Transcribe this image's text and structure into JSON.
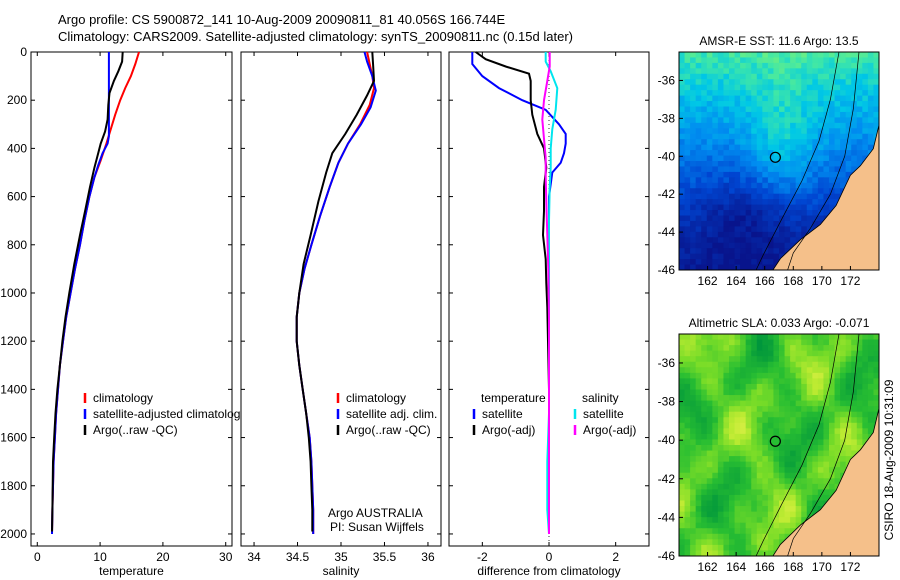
{
  "header": {
    "line1": "Argo profile: CS 5900872_141 10-Aug-2009 20090811_81 40.056S 166.744E",
    "line2": "Climatology: CARS2009. Satellite-adjusted climatology: synTS_20090811.nc (0.15d later)"
  },
  "side_stamp": "CSIRO 18-Aug-2009 10:31:09",
  "colors": {
    "climatology": "#ff0000",
    "satellite": "#0000ff",
    "argo": "#000000",
    "satellite_salinity": "#00e5ee",
    "argo_salinity": "#ff00ff",
    "land": "#f5c08a"
  },
  "chart_data": [
    {
      "id": "temperature",
      "type": "line",
      "xlabel": "temperature",
      "xlim": [
        -1,
        31
      ],
      "ylim": [
        2050,
        0
      ],
      "xticks": [
        "0",
        "10",
        "20",
        "30"
      ],
      "yticks": [
        "0",
        "200",
        "400",
        "600",
        "800",
        "1000",
        "1200",
        "1400",
        "1600",
        "1800",
        "2000"
      ],
      "legend": [
        "climatology",
        "satellite-adjusted climatology",
        "Argo(..raw -QC)"
      ],
      "series": [
        {
          "name": "climatology",
          "color": "#ff0000",
          "points": [
            [
              16.2,
              0
            ],
            [
              15.6,
              50
            ],
            [
              14.9,
              100
            ],
            [
              14.0,
              150
            ],
            [
              13.2,
              200
            ],
            [
              12.4,
              260
            ],
            [
              11.7,
              320
            ],
            [
              11.0,
              380
            ],
            [
              10.1,
              450
            ],
            [
              9.1,
              520
            ],
            [
              8.3,
              600
            ],
            [
              7.5,
              700
            ],
            [
              6.8,
              800
            ],
            [
              6.0,
              900
            ],
            [
              5.3,
              1000
            ],
            [
              4.6,
              1100
            ],
            [
              4.1,
              1200
            ],
            [
              3.6,
              1300
            ],
            [
              3.3,
              1400
            ],
            [
              3.0,
              1500
            ],
            [
              2.8,
              1600
            ],
            [
              2.6,
              1700
            ],
            [
              2.5,
              1800
            ],
            [
              2.4,
              1900
            ],
            [
              2.35,
              2000
            ]
          ]
        },
        {
          "name": "satellite-adjusted climatology",
          "color": "#0000ff",
          "points": [
            [
              11.4,
              0
            ],
            [
              11.4,
              100
            ],
            [
              11.4,
              200
            ],
            [
              11.4,
              300
            ],
            [
              11.4,
              350
            ],
            [
              11.2,
              380
            ],
            [
              10.4,
              420
            ],
            [
              9.7,
              470
            ],
            [
              9.1,
              520
            ],
            [
              8.3,
              600
            ],
            [
              7.5,
              700
            ],
            [
              6.8,
              800
            ],
            [
              6.0,
              900
            ],
            [
              5.3,
              1000
            ],
            [
              4.6,
              1100
            ],
            [
              4.1,
              1200
            ],
            [
              3.6,
              1300
            ],
            [
              3.3,
              1400
            ],
            [
              3.0,
              1500
            ],
            [
              2.8,
              1600
            ],
            [
              2.6,
              1700
            ],
            [
              2.5,
              1800
            ],
            [
              2.4,
              1900
            ],
            [
              2.35,
              2000
            ]
          ]
        },
        {
          "name": "Argo(..raw -QC)",
          "color": "#000000",
          "points": [
            [
              13.6,
              0
            ],
            [
              13.5,
              40
            ],
            [
              12.9,
              80
            ],
            [
              12.2,
              120
            ],
            [
              11.5,
              170
            ],
            [
              11.3,
              220
            ],
            [
              11.2,
              280
            ],
            [
              10.8,
              330
            ],
            [
              10.1,
              380
            ],
            [
              9.7,
              420
            ],
            [
              9.1,
              480
            ],
            [
              8.4,
              560
            ],
            [
              7.7,
              650
            ],
            [
              6.8,
              760
            ],
            [
              5.9,
              880
            ],
            [
              5.1,
              1000
            ],
            [
              4.5,
              1100
            ],
            [
              4.0,
              1200
            ],
            [
              3.6,
              1300
            ],
            [
              3.2,
              1400
            ],
            [
              2.9,
              1500
            ],
            [
              2.7,
              1600
            ],
            [
              2.5,
              1700
            ],
            [
              2.45,
              1800
            ],
            [
              2.4,
              1900
            ],
            [
              2.35,
              1990
            ]
          ]
        }
      ]
    },
    {
      "id": "salinity",
      "type": "line",
      "xlabel": "salinity",
      "xlim": [
        33.85,
        36.15
      ],
      "ylim": [
        2050,
        0
      ],
      "xticks": [
        "34",
        "34.5",
        "35",
        "35.5",
        "36"
      ],
      "legend": [
        "climatology",
        "satellite adj. clim.",
        "Argo(..raw -QC)"
      ],
      "annotation": [
        "Argo AUSTRALIA",
        "PI: Susan Wijffels"
      ],
      "series": [
        {
          "name": "climatology",
          "color": "#ff0000",
          "points": [
            [
              35.3,
              0
            ],
            [
              35.36,
              100
            ],
            [
              35.38,
              150
            ],
            [
              35.33,
              220
            ],
            [
              35.22,
              300
            ],
            [
              35.08,
              380
            ],
            [
              34.97,
              460
            ],
            [
              34.87,
              560
            ],
            [
              34.76,
              680
            ],
            [
              34.66,
              800
            ],
            [
              34.58,
              900
            ],
            [
              34.52,
              1000
            ],
            [
              34.49,
              1100
            ],
            [
              34.49,
              1200
            ],
            [
              34.52,
              1300
            ],
            [
              34.56,
              1400
            ],
            [
              34.6,
              1500
            ],
            [
              34.64,
              1600
            ],
            [
              34.66,
              1700
            ],
            [
              34.67,
              1800
            ],
            [
              34.68,
              1900
            ],
            [
              34.68,
              2000
            ]
          ]
        },
        {
          "name": "satellite adj. clim.",
          "color": "#0000ff",
          "points": [
            [
              35.27,
              0
            ],
            [
              35.3,
              40
            ],
            [
              35.36,
              100
            ],
            [
              35.4,
              160
            ],
            [
              35.34,
              230
            ],
            [
              35.23,
              300
            ],
            [
              35.08,
              380
            ],
            [
              34.97,
              460
            ],
            [
              34.87,
              560
            ],
            [
              34.76,
              680
            ],
            [
              34.66,
              800
            ],
            [
              34.58,
              900
            ],
            [
              34.52,
              1000
            ],
            [
              34.49,
              1100
            ],
            [
              34.49,
              1200
            ],
            [
              34.52,
              1300
            ],
            [
              34.56,
              1400
            ],
            [
              34.6,
              1500
            ],
            [
              34.64,
              1600
            ],
            [
              34.66,
              1700
            ],
            [
              34.67,
              1800
            ],
            [
              34.68,
              1900
            ],
            [
              34.68,
              2000
            ]
          ]
        },
        {
          "name": "Argo(..raw -QC)",
          "color": "#000000",
          "points": [
            [
              35.36,
              0
            ],
            [
              35.37,
              60
            ],
            [
              35.38,
              120
            ],
            [
              35.3,
              180
            ],
            [
              35.18,
              260
            ],
            [
              35.05,
              340
            ],
            [
              34.9,
              420
            ],
            [
              34.83,
              500
            ],
            [
              34.74,
              620
            ],
            [
              34.65,
              760
            ],
            [
              34.57,
              880
            ],
            [
              34.52,
              1000
            ],
            [
              34.49,
              1100
            ],
            [
              34.49,
              1200
            ],
            [
              34.52,
              1300
            ],
            [
              34.56,
              1400
            ],
            [
              34.6,
              1500
            ],
            [
              34.63,
              1600
            ],
            [
              34.65,
              1700
            ],
            [
              34.66,
              1800
            ],
            [
              34.67,
              1900
            ],
            [
              34.67,
              1990
            ]
          ]
        }
      ]
    },
    {
      "id": "difference",
      "type": "line",
      "xlabel": "difference from climatology",
      "xlim": [
        -3,
        3
      ],
      "ylim": [
        2050,
        0
      ],
      "xticks": [
        "-2",
        "0",
        "2"
      ],
      "legend_temperature": {
        "title": "temperature",
        "entries": [
          "satellite",
          "Argo(-adj)"
        ]
      },
      "legend_salinity": {
        "title": "salinity",
        "entries": [
          "satellite",
          "Argo(-adj)"
        ]
      },
      "series": [
        {
          "name": "temperature satellite",
          "color": "#0000ff",
          "points": [
            [
              -2.3,
              0
            ],
            [
              -2.3,
              50
            ],
            [
              -2.0,
              100
            ],
            [
              -1.5,
              150
            ],
            [
              -0.8,
              200
            ],
            [
              -0.1,
              240
            ],
            [
              0.3,
              300
            ],
            [
              0.5,
              340
            ],
            [
              0.5,
              380
            ],
            [
              0.45,
              420
            ],
            [
              0.35,
              460
            ],
            [
              0.1,
              500
            ],
            [
              0,
              600
            ],
            [
              0,
              800
            ],
            [
              0,
              1000
            ],
            [
              0,
              1200
            ],
            [
              0,
              1400
            ],
            [
              0,
              1600
            ],
            [
              0,
              1800
            ],
            [
              0,
              2000
            ]
          ]
        },
        {
          "name": "temperature Argo(-adj)",
          "color": "#000000",
          "points": [
            [
              -2.2,
              0
            ],
            [
              -1.9,
              30
            ],
            [
              -1.3,
              60
            ],
            [
              -0.6,
              90
            ],
            [
              -0.55,
              120
            ],
            [
              -0.55,
              200
            ],
            [
              -0.5,
              260
            ],
            [
              -0.35,
              340
            ],
            [
              -0.15,
              400
            ],
            [
              -0.08,
              480
            ],
            [
              -0.15,
              560
            ],
            [
              -0.15,
              660
            ],
            [
              -0.18,
              760
            ],
            [
              -0.1,
              860
            ],
            [
              -0.08,
              960
            ],
            [
              -0.05,
              1060
            ],
            [
              -0.03,
              1200
            ],
            [
              0,
              1400
            ],
            [
              0,
              1600
            ],
            [
              0,
              1800
            ],
            [
              0,
              2000
            ]
          ]
        },
        {
          "name": "salinity satellite",
          "color": "#00e5ee",
          "points": [
            [
              -0.1,
              0
            ],
            [
              -0.1,
              40
            ],
            [
              0.05,
              80
            ],
            [
              0.25,
              150
            ],
            [
              0.2,
              240
            ],
            [
              0.1,
              320
            ],
            [
              0.05,
              400
            ],
            [
              0.05,
              480
            ],
            [
              0.02,
              560
            ],
            [
              0,
              700
            ],
            [
              0,
              900
            ],
            [
              0,
              1100
            ],
            [
              0,
              1300
            ],
            [
              0,
              1500
            ],
            [
              -0.05,
              1700
            ],
            [
              -0.05,
              1900
            ],
            [
              0,
              2000
            ]
          ]
        },
        {
          "name": "salinity Argo(-adj)",
          "color": "#ff00ff",
          "points": [
            [
              0.02,
              0
            ],
            [
              0.02,
              60
            ],
            [
              -0.05,
              120
            ],
            [
              -0.15,
              200
            ],
            [
              -0.2,
              280
            ],
            [
              -0.15,
              360
            ],
            [
              -0.1,
              440
            ],
            [
              -0.1,
              520
            ],
            [
              -0.08,
              620
            ],
            [
              -0.05,
              760
            ],
            [
              -0.02,
              900
            ],
            [
              0,
              1100
            ],
            [
              0,
              1300
            ],
            [
              0,
              1500
            ],
            [
              0,
              1700
            ],
            [
              0,
              1900
            ],
            [
              0,
              2000
            ]
          ]
        }
      ]
    },
    {
      "id": "sst_map",
      "type": "heatmap",
      "title": "AMSR-E SST: 11.6  Argo: 13.5",
      "xlim": [
        160,
        174
      ],
      "ylim": [
        -46,
        -34.5
      ],
      "xticks": [
        "162",
        "164",
        "166",
        "168",
        "170",
        "172"
      ],
      "yticks": [
        "-36",
        "-38",
        "-40",
        "-42",
        "-44",
        "-46"
      ],
      "marker": [
        166.744,
        -40.056
      ]
    },
    {
      "id": "sla_map",
      "type": "heatmap",
      "title": "Altimetric SLA: 0.033  Argo: -0.071",
      "xlim": [
        160,
        174
      ],
      "ylim": [
        -46,
        -34.5
      ],
      "xticks": [
        "162",
        "164",
        "166",
        "168",
        "170",
        "172"
      ],
      "yticks": [
        "-36",
        "-38",
        "-40",
        "-42",
        "-44",
        "-46"
      ],
      "marker": [
        166.744,
        -40.056
      ]
    }
  ]
}
